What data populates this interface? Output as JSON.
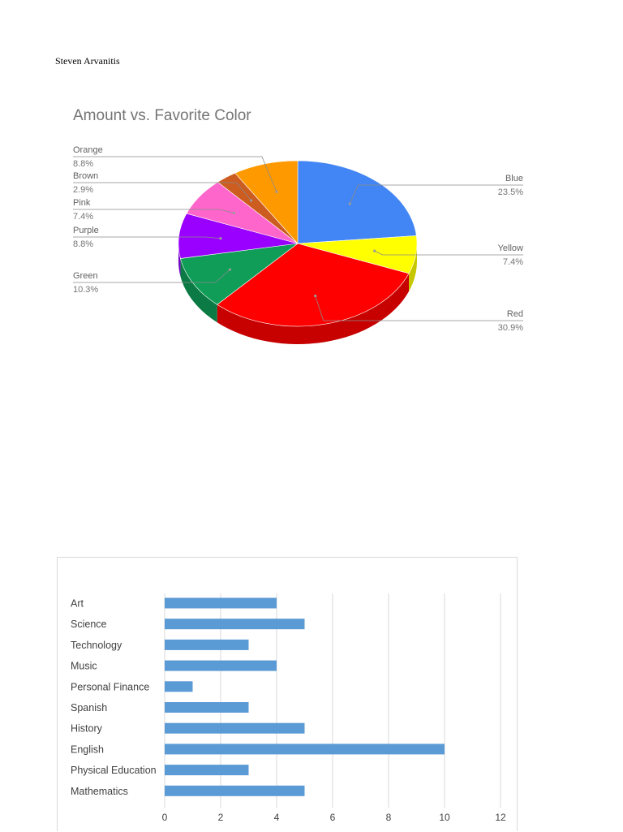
{
  "author": "Steven Arvanitis",
  "chart_data": [
    {
      "type": "pie",
      "title": "Amount vs. Favorite Color",
      "slices": [
        {
          "label": "Blue",
          "percent_label": "23.5%",
          "value": 23.5,
          "color": "#4285f4"
        },
        {
          "label": "Yellow",
          "percent_label": "7.4%",
          "value": 7.4,
          "color": "#ffff00"
        },
        {
          "label": "Red",
          "percent_label": "30.9%",
          "value": 30.9,
          "color": "#ff0000"
        },
        {
          "label": "Green",
          "percent_label": "10.3%",
          "value": 10.3,
          "color": "#0f9d58"
        },
        {
          "label": "Purple",
          "percent_label": "8.8%",
          "value": 8.8,
          "color": "#9900ff"
        },
        {
          "label": "Pink",
          "percent_label": "7.4%",
          "value": 7.4,
          "color": "#ff66cc"
        },
        {
          "label": "Brown",
          "percent_label": "2.9%",
          "value": 2.9,
          "color": "#cc5c1f"
        },
        {
          "label": "Orange",
          "percent_label": "8.8%",
          "value": 8.8,
          "color": "#ff9900"
        }
      ],
      "three_d": true
    },
    {
      "type": "bar",
      "orientation": "horizontal",
      "categories": [
        "Art",
        "Science",
        "Technology",
        "Music",
        "Personal Finance",
        "Spanish",
        "History",
        "English",
        "Physical Education",
        "Mathematics"
      ],
      "values": [
        4,
        5,
        3,
        4,
        1,
        3,
        5,
        10,
        3,
        5
      ],
      "xlim": [
        0,
        12
      ],
      "xticks": [
        0,
        2,
        4,
        6,
        8,
        10,
        12
      ],
      "bar_color": "#5b9bd5",
      "grid": true
    }
  ]
}
